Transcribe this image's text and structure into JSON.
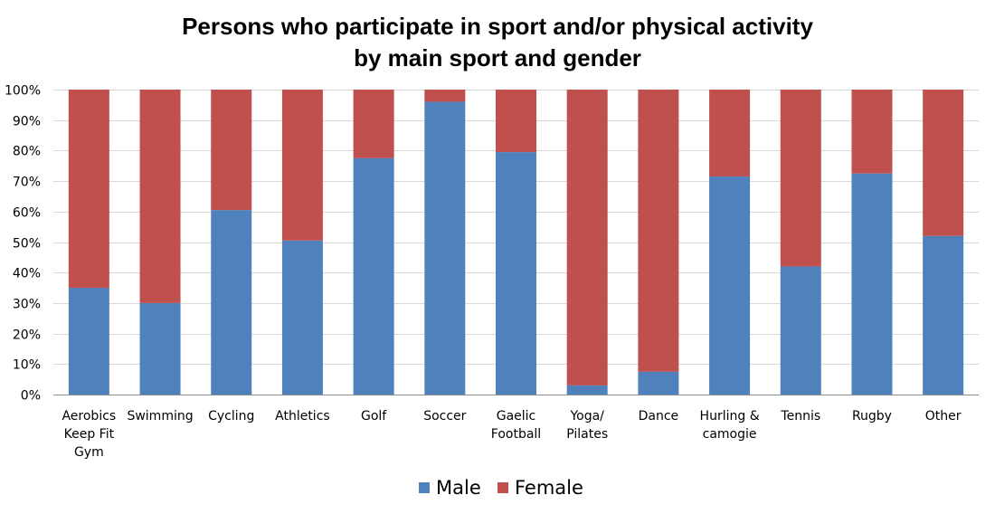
{
  "chart_data": {
    "type": "bar",
    "stacked": true,
    "percent_stacked": true,
    "title": "Persons who participate in sport and/or physical activity",
    "subtitle": "by main sport and gender",
    "categories": [
      [
        "Aerobics",
        "Keep Fit",
        "Gym"
      ],
      [
        "Swimming"
      ],
      [
        "Cycling"
      ],
      [
        "Athletics"
      ],
      [
        "Golf"
      ],
      [
        "Soccer"
      ],
      [
        "Gaelic",
        "Football"
      ],
      [
        "Yoga/",
        "Pilates"
      ],
      [
        "Dance"
      ],
      [
        "Hurling &",
        "camogie"
      ],
      [
        "Tennis"
      ],
      [
        "Rugby"
      ],
      [
        "Other"
      ]
    ],
    "series": [
      {
        "name": "Male",
        "color": "#4f81bd",
        "values": [
          35,
          30,
          60.5,
          50.5,
          77.5,
          96,
          79.5,
          3,
          7.5,
          71.5,
          42,
          72.5,
          52
        ]
      },
      {
        "name": "Female",
        "color": "#c0504d",
        "values": [
          65,
          70,
          39.5,
          49.5,
          22.5,
          4,
          20.5,
          97,
          92.5,
          28.5,
          58,
          27.5,
          48
        ]
      }
    ],
    "ylim": [
      0,
      100
    ],
    "ytick_values": [
      0,
      10,
      20,
      30,
      40,
      50,
      60,
      70,
      80,
      90,
      100
    ],
    "ytick_labels": [
      "0%",
      "10%",
      "20%",
      "30%",
      "40%",
      "50%",
      "60%",
      "70%",
      "80%",
      "90%",
      "100%"
    ],
    "xlabel": "",
    "ylabel": "",
    "grid": true,
    "legend_position": "bottom"
  }
}
